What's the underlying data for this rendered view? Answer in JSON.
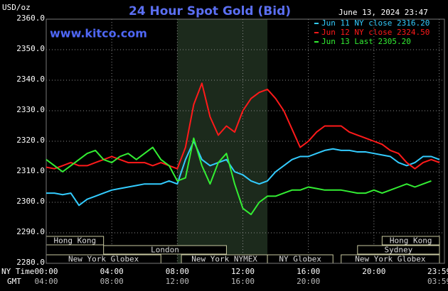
{
  "chart_data": {
    "type": "line",
    "title": "24 Hour Spot Gold (Bid)",
    "subtitle": "www.kitco.com",
    "y_label": "USD/oz",
    "timestamp": "June 13, 2024 23:47",
    "x_label": "NY Time",
    "x2_label": "GMT",
    "x": [
      0,
      0.5,
      1,
      1.5,
      2,
      2.5,
      3,
      3.5,
      4,
      4.5,
      5,
      5.5,
      6,
      6.5,
      7,
      7.5,
      8,
      8.5,
      9,
      9.5,
      10,
      10.5,
      11,
      11.5,
      12,
      12.5,
      13,
      13.5,
      14,
      14.5,
      15,
      15.5,
      16,
      16.5,
      17,
      17.5,
      18,
      18.5,
      19,
      19.5,
      20,
      20.5,
      21,
      21.5,
      22,
      22.5,
      23,
      23.5,
      24
    ],
    "xlim": [
      0,
      24
    ],
    "xticks": [
      {
        "value": 0,
        "label": "00:00"
      },
      {
        "value": 4,
        "label": "04:00"
      },
      {
        "value": 8,
        "label": "08:00"
      },
      {
        "value": 12,
        "label": "12:00"
      },
      {
        "value": 16,
        "label": "16:00"
      },
      {
        "value": 20,
        "label": "20:00"
      },
      {
        "value": 23.9833,
        "label": "23:59"
      }
    ],
    "x2ticks": [
      {
        "value": 0,
        "label": "04:00"
      },
      {
        "value": 4,
        "label": "08:00"
      },
      {
        "value": 8,
        "label": "12:00"
      },
      {
        "value": 12,
        "label": "16:00"
      },
      {
        "value": 16,
        "label": "20:00"
      },
      {
        "value": 23.9833,
        "label": "03:59"
      }
    ],
    "ylim": [
      2280,
      2360
    ],
    "yticks": [
      {
        "value": 2280,
        "label": "2280.0"
      },
      {
        "value": 2290,
        "label": "2290.0"
      },
      {
        "value": 2300,
        "label": "2300.0"
      },
      {
        "value": 2310,
        "label": "2310.0"
      },
      {
        "value": 2320,
        "label": "2320.0"
      },
      {
        "value": 2330,
        "label": "2330.0"
      },
      {
        "value": 2340,
        "label": "2340.0"
      },
      {
        "value": 2350,
        "label": "2350.0"
      },
      {
        "value": 2360,
        "label": "2360.0"
      }
    ],
    "grid": true,
    "legend": "top-right",
    "highlight": [
      8,
      13.5
    ],
    "series": [
      {
        "name": "Jun 11 NY close 2316.20",
        "color": "#33ccff",
        "values": [
          2303,
          2303,
          2302.5,
          2303,
          2299,
          2301,
          2302,
          2303,
          2304,
          2304.5,
          2305,
          2305.5,
          2306,
          2306,
          2306,
          2307,
          2306,
          2314,
          2320,
          2314,
          2312,
          2313,
          2314,
          2310,
          2309,
          2307,
          2306,
          2307,
          2310,
          2312,
          2314,
          2315,
          2315,
          2316,
          2317,
          2317.5,
          2317,
          2317,
          2316.5,
          2316.5,
          2316,
          2315.5,
          2315,
          2313,
          2312,
          2313,
          2315,
          2315,
          2314
        ]
      },
      {
        "name": "Jun 12 NY close 2324.50",
        "color": "#ff1a1a",
        "values": [
          2311.5,
          2311,
          2312,
          2313,
          2312,
          2312,
          2313,
          2314,
          2315,
          2314,
          2313,
          2313,
          2313,
          2312,
          2313,
          2312,
          2311,
          2318,
          2332,
          2339,
          2328,
          2322,
          2325,
          2323,
          2330,
          2334,
          2336,
          2337,
          2334,
          2330,
          2324,
          2318,
          2320,
          2323,
          2325,
          2325,
          2325,
          2323,
          2322,
          2321,
          2320,
          2319,
          2317,
          2316,
          2313,
          2311,
          2313,
          2314,
          2313
        ]
      },
      {
        "name": "Jun 13 Last 2305.20",
        "color": "#33ee33",
        "values": [
          2314,
          2312,
          2310,
          2312,
          2314,
          2316,
          2317,
          2314,
          2313,
          2315,
          2316,
          2314,
          2316,
          2318,
          2314,
          2312,
          2307,
          2308,
          2321,
          2312,
          2306,
          2313,
          2316,
          2306,
          2298,
          2296,
          2300,
          2302,
          2302,
          2303,
          2304,
          2304,
          2305,
          2304.5,
          2304,
          2304,
          2304,
          2303.5,
          2303,
          2303,
          2304,
          2303,
          2304,
          2305,
          2306,
          2305,
          2306,
          2307,
          null
        ]
      }
    ],
    "sessions": [
      {
        "label": "Hong Kong",
        "start": 0,
        "end": 3.5
      },
      {
        "label": "London",
        "start": 3.5,
        "end": 11
      },
      {
        "label": "New York Globex",
        "start": 0,
        "end": 7
      },
      {
        "label": "New York NYMEX",
        "start": 8.25,
        "end": 13.5
      },
      {
        "label": "NY Globex",
        "start": 13.5,
        "end": 17.5
      },
      {
        "label": "Hong Kong",
        "start": 20.5,
        "end": 24
      },
      {
        "label": "Sydney",
        "start": 19,
        "end": 24
      },
      {
        "label": "New York Globex",
        "start": 18,
        "end": 24
      }
    ]
  }
}
